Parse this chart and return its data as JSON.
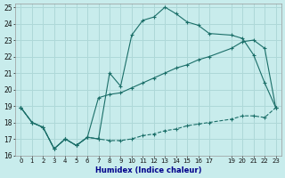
{
  "xlabel": "Humidex (Indice chaleur)",
  "bg_color": "#c8ecec",
  "grid_color": "#aed8d8",
  "line_color": "#1a6e68",
  "xlim": [
    -0.5,
    23.5
  ],
  "ylim": [
    16,
    25.2
  ],
  "xtick_vals": [
    0,
    1,
    2,
    3,
    4,
    5,
    6,
    7,
    8,
    9,
    10,
    11,
    12,
    13,
    14,
    15,
    16,
    17,
    19,
    20,
    21,
    22,
    23
  ],
  "xtick_labels": [
    "0",
    "1",
    "2",
    "3",
    "4",
    "5",
    "6",
    "7",
    "8",
    "9",
    "10",
    "11",
    "12",
    "13",
    "14",
    "15",
    "16",
    "17",
    "19",
    "20",
    "21",
    "22",
    "23"
  ],
  "yticks": [
    16,
    17,
    18,
    19,
    20,
    21,
    22,
    23,
    24,
    25
  ],
  "line1_x": [
    0,
    1,
    2,
    3,
    4,
    5,
    6,
    7,
    8,
    9,
    10,
    11,
    12,
    13,
    14,
    15,
    16,
    17,
    19,
    20,
    21,
    22,
    23
  ],
  "line1_y": [
    18.9,
    18.0,
    17.7,
    16.4,
    17.0,
    16.6,
    17.1,
    17.0,
    21.0,
    20.2,
    23.3,
    24.2,
    24.4,
    25.0,
    24.6,
    24.1,
    23.9,
    23.4,
    23.3,
    23.1,
    22.1,
    20.4,
    18.9
  ],
  "line2_x": [
    0,
    1,
    2,
    3,
    4,
    5,
    6,
    7,
    8,
    9,
    10,
    11,
    12,
    13,
    14,
    15,
    16,
    17,
    19,
    20,
    21,
    22,
    23
  ],
  "line2_y": [
    18.9,
    18.0,
    17.7,
    16.4,
    17.0,
    16.6,
    17.1,
    19.5,
    19.7,
    19.8,
    20.1,
    20.4,
    20.7,
    21.0,
    21.3,
    21.5,
    21.8,
    22.0,
    22.5,
    22.9,
    23.0,
    22.5,
    18.9
  ],
  "line3_x": [
    0,
    1,
    2,
    3,
    4,
    5,
    6,
    7,
    8,
    9,
    10,
    11,
    12,
    13,
    14,
    15,
    16,
    17,
    19,
    20,
    21,
    22,
    23
  ],
  "line3_y": [
    18.9,
    18.0,
    17.7,
    16.4,
    17.0,
    16.6,
    17.1,
    17.0,
    16.9,
    16.9,
    17.0,
    17.2,
    17.3,
    17.5,
    17.6,
    17.8,
    17.9,
    18.0,
    18.2,
    18.4,
    18.4,
    18.3,
    18.9
  ]
}
